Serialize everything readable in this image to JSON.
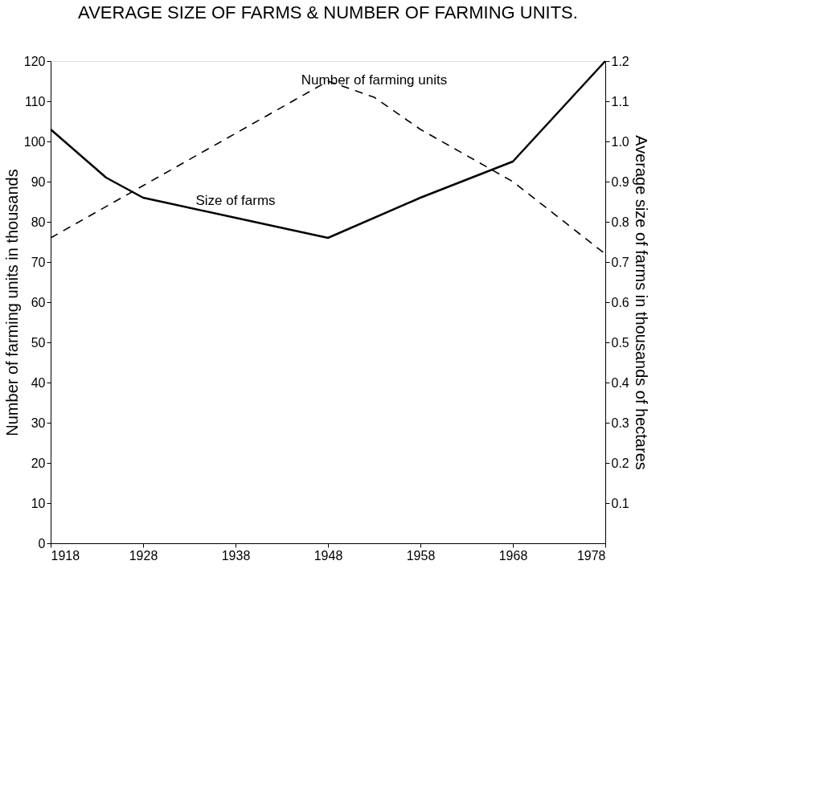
{
  "chart_data": {
    "type": "line",
    "title": "AVERAGE SIZE OF FARMS & NUMBER OF FARMING UNITS.",
    "ylabel": "Number of farming units in thousands",
    "y2label": "Average size of farms in thousands of hectares",
    "series": [
      {
        "name": "Number of farming units",
        "color": "#000000",
        "line_style": "dashed",
        "x": [
          1918,
          1928,
          1938,
          1948,
          1953,
          1958,
          1968,
          1978
        ],
        "values": [
          76,
          89,
          102,
          115,
          111,
          103,
          90,
          72
        ]
      },
      {
        "name": "Size of farms",
        "color": "#000000",
        "line_style": "solid",
        "axis": "y2",
        "x": [
          1918,
          1924,
          1928,
          1938,
          1948,
          1958,
          1968,
          1978
        ],
        "values": [
          1.03,
          0.91,
          0.86,
          0.81,
          0.76,
          0.86,
          0.95,
          1.2
        ]
      }
    ],
    "xlim": [
      1918,
      1978
    ],
    "xticks": [
      1918,
      1928,
      1938,
      1948,
      1958,
      1968,
      1978
    ],
    "ylim": [
      0,
      120
    ],
    "yticks": [
      0,
      10,
      20,
      30,
      40,
      50,
      60,
      70,
      80,
      90,
      100,
      110,
      120
    ],
    "y2lim": [
      0,
      1.2
    ],
    "y2ticks": [
      0.1,
      0.2,
      0.3,
      0.4,
      0.5,
      0.6,
      0.7,
      0.8,
      0.9,
      {
        "value": 1.0,
        "label": "1.0"
      },
      1.1,
      1.2
    ],
    "grid": false,
    "marker": "none"
  }
}
